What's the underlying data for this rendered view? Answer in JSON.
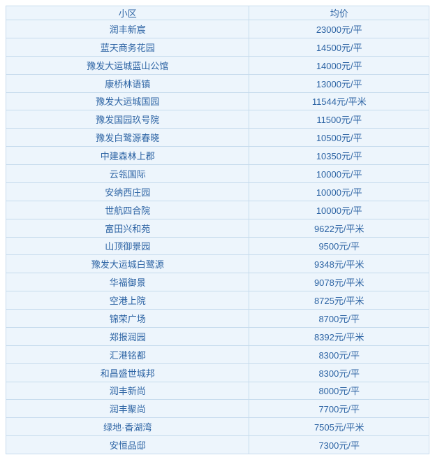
{
  "colors": {
    "page_background": "#ffffff",
    "cell_background": "#edf5fc",
    "border": "#c6dbed",
    "text": "#2d64a4"
  },
  "chart_data": {
    "type": "table",
    "columns": [
      "小区",
      "均价"
    ],
    "rows": [
      [
        "润丰新宸",
        "23000元/平"
      ],
      [
        "蓝天商务花园",
        "14500元/平"
      ],
      [
        "豫发大运城蓝山公馆",
        "14000元/平"
      ],
      [
        "康桥林语镇",
        "13000元/平"
      ],
      [
        "豫发大运城国园",
        "11544元/平米"
      ],
      [
        "豫发国园玖号院",
        "11500元/平"
      ],
      [
        "豫发白鹭源春晓",
        "10500元/平"
      ],
      [
        "中建森林上郡",
        "10350元/平"
      ],
      [
        "云瓴国际",
        "10000元/平"
      ],
      [
        "安纳西庄园",
        "10000元/平"
      ],
      [
        "世航四合院",
        "10000元/平"
      ],
      [
        "富田兴和苑",
        "9622元/平米"
      ],
      [
        "山顶御景园",
        "9500元/平"
      ],
      [
        "豫发大运城白鹭源",
        "9348元/平米"
      ],
      [
        "华福御景",
        "9078元/平米"
      ],
      [
        "空港上院",
        "8725元/平米"
      ],
      [
        "锦荣广场",
        "8700元/平"
      ],
      [
        "郑报润园",
        "8392元/平米"
      ],
      [
        "汇港铭都",
        "8300元/平"
      ],
      [
        "和昌盛世城邦",
        "8300元/平"
      ],
      [
        "润丰新尚",
        "8000元/平"
      ],
      [
        "润丰聚尚",
        "7700元/平"
      ],
      [
        "绿地·香湖湾",
        "7505元/平米"
      ],
      [
        "安恒品邸",
        "7300元/平"
      ]
    ]
  }
}
